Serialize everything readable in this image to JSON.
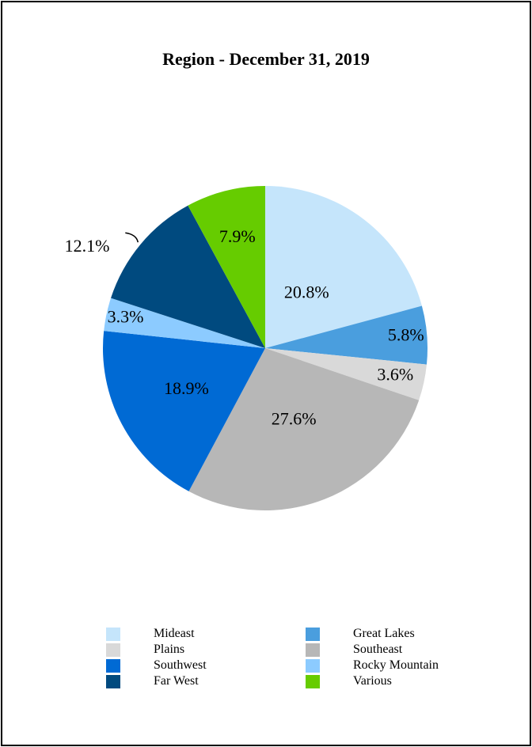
{
  "chart_data": {
    "type": "pie",
    "title": "Region - December 31, 2019",
    "slices": [
      {
        "name": "Mideast",
        "value": 20.8,
        "label": "20.8%",
        "color": "#c5e5fb"
      },
      {
        "name": "Great Lakes",
        "value": 5.8,
        "label": "5.8%",
        "color": "#4a9ede"
      },
      {
        "name": "Plains",
        "value": 3.6,
        "label": "3.6%",
        "color": "#d9d9d9"
      },
      {
        "name": "Southeast",
        "value": 27.6,
        "label": "27.6%",
        "color": "#b7b7b7"
      },
      {
        "name": "Southwest",
        "value": 18.9,
        "label": "18.9%",
        "color": "#006ad4"
      },
      {
        "name": "Rocky Mountain",
        "value": 3.3,
        "label": "3.3%",
        "color": "#8ccbff"
      },
      {
        "name": "Far West",
        "value": 12.1,
        "label": "12.1%",
        "color": "#004a7f"
      },
      {
        "name": "Various",
        "value": 7.9,
        "label": "7.9%",
        "color": "#66cc00"
      }
    ],
    "legend": {
      "placement": "bottom",
      "entries": [
        "Mideast",
        "Great Lakes",
        "Plains",
        "Southeast",
        "Southwest",
        "Rocky Mountain",
        "Far West",
        "Various"
      ]
    }
  }
}
